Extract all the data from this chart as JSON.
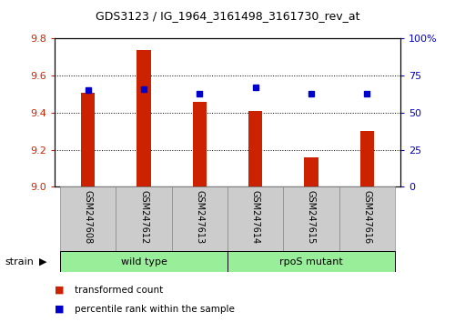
{
  "title": "GDS3123 / IG_1964_3161498_3161730_rev_at",
  "samples": [
    "GSM247608",
    "GSM247612",
    "GSM247613",
    "GSM247614",
    "GSM247615",
    "GSM247616"
  ],
  "red_values": [
    9.51,
    9.74,
    9.46,
    9.41,
    9.16,
    9.3
  ],
  "blue_values": [
    65,
    66,
    63,
    67,
    63,
    63
  ],
  "ylim_left": [
    9.0,
    9.8
  ],
  "ylim_right": [
    0,
    100
  ],
  "yticks_left": [
    9.0,
    9.2,
    9.4,
    9.6,
    9.8
  ],
  "yticks_right": [
    0,
    25,
    50,
    75,
    100
  ],
  "ytick_labels_right": [
    "0",
    "25",
    "50",
    "75",
    "100%"
  ],
  "bar_color": "#cc2200",
  "dot_color": "#0000cc",
  "group_labels": [
    "wild type",
    "rpoS mutant"
  ],
  "group_color": "#99ee99",
  "strain_label": "strain",
  "legend_items": [
    {
      "color": "#cc2200",
      "label": "transformed count"
    },
    {
      "color": "#0000cc",
      "label": "percentile rank within the sample"
    }
  ],
  "background_color": "#ffffff",
  "tick_color_left": "#cc2200",
  "tick_color_right": "#0000cc",
  "bar_width": 0.25
}
